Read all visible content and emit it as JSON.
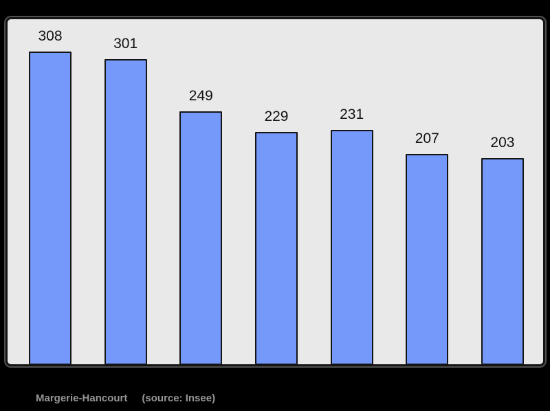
{
  "page": {
    "background": "#000000"
  },
  "chart_data": {
    "type": "bar",
    "values": [
      308,
      301,
      249,
      229,
      231,
      207,
      203
    ],
    "data_labels": [
      "308",
      "301",
      "249",
      "229",
      "231",
      "207",
      "203"
    ],
    "ylim": [
      0,
      340
    ],
    "grid": false,
    "legend": false,
    "axis_tick_labels_visible": false,
    "bar_color": "#7598fb",
    "bar_border_color": "#141414",
    "plot_background": "#e9e9e9",
    "plot_border_color": "#141414",
    "outer_background": "#000000"
  },
  "caption": {
    "title": "Margerie-Hancourt",
    "source": "(source: Insee)",
    "color": "#969696"
  }
}
